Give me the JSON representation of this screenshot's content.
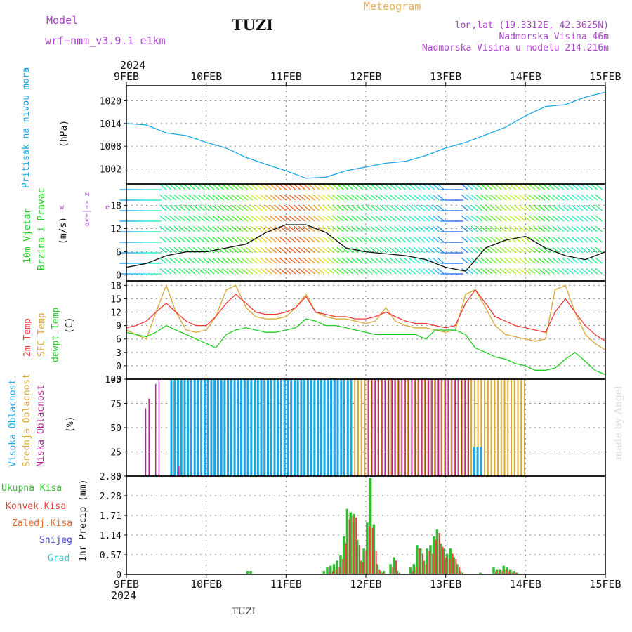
{
  "header": {
    "model_label": "Model",
    "model_name": "wrf−nmm_v3.9.1  e1km",
    "station": "TUZI",
    "product": "Meteogram",
    "lonlat": "lon,lat (19.3312E, 42.3625N)",
    "altitude": "Nadmorska Visina 46m",
    "model_altitude": "Nadmorska Visina u modelu 214.216m",
    "year": "2024",
    "footer_station": "TUZI",
    "watermark": "made by Angel"
  },
  "colors": {
    "pressure": "#1aa7e6",
    "temp2m": "#ee3b3b",
    "sfc": "#d9a835",
    "dew": "#22cc22",
    "high_cloud": "#1aa7e6",
    "mid_cloud": "#d9a835",
    "low_cloud": "#bb2299",
    "rain_total": "#33bb33",
    "rain_conv": "#ee3b3b",
    "snow": "#4444dd",
    "title_purple": "#aa44cc",
    "title_orange": "#e8b050"
  },
  "time_axis": {
    "ticks": [
      "9FEB",
      "10FEB",
      "11FEB",
      "12FEB",
      "13FEB",
      "14FEB",
      "15FEB"
    ]
  },
  "panels": {
    "pressure": {
      "labels": [
        "Pritisak na nivou mora"
      ],
      "unit": "(hPa)"
    },
    "wind": {
      "labels": [
        "10m Vjetar",
        "Brzina i Pravac"
      ],
      "unit": "(m/s)",
      "compass_ns": "α<−│−> z",
      "compass_w": "w",
      "compass_e": "e"
    },
    "temp": {
      "labels": [
        "2m Temp",
        "SFC Temp",
        "dewpt Temp"
      ],
      "unit": "(C)"
    },
    "cloud": {
      "labels": [
        "Visoka Oblacnost",
        "Srednja Oblacnost",
        "Niska Oblacnost"
      ],
      "unit": "(%)"
    },
    "precip": {
      "labels": [
        "Ukupna Kisa",
        "Konvek.Kisa",
        "Zaledj.Kisa",
        "Snijeg",
        "Grad"
      ],
      "unit": "1hr Precip (mm)"
    }
  },
  "chart_data": [
    {
      "type": "line",
      "title": "Pritisak na nivou mora",
      "ylabel": "(hPa)",
      "ylim": [
        998,
        1024
      ],
      "yticks": [
        1002,
        1008,
        1014,
        1020
      ],
      "x_days": [
        0,
        0.25,
        0.5,
        0.75,
        1.0,
        1.25,
        1.5,
        1.75,
        2.0,
        2.25,
        2.5,
        2.75,
        3.0,
        3.25,
        3.5,
        3.75,
        4.0,
        4.25,
        4.5,
        4.75,
        5.0,
        5.25,
        5.5,
        5.75,
        6.0
      ],
      "series": [
        {
          "values": [
            1014,
            1013.6,
            1011.5,
            1010.8,
            1009,
            1007.5,
            1005,
            1003.2,
            1001.5,
            999.5,
            999.8,
            1001.5,
            1002.5,
            1003.5,
            1004,
            1005.5,
            1007.5,
            1009,
            1011,
            1013,
            1016,
            1018.5,
            1019,
            1021,
            1022.3
          ]
        }
      ]
    },
    {
      "type": "line",
      "title": "10m Vjetar Brzina i Pravac",
      "ylabel": "(m/s)",
      "ylim": [
        -1.5,
        23.5
      ],
      "yticks": [
        0,
        6,
        12,
        18
      ],
      "x_days": [
        0,
        0.25,
        0.5,
        0.75,
        1.0,
        1.25,
        1.5,
        1.75,
        2.0,
        2.25,
        2.5,
        2.75,
        3.0,
        3.25,
        3.5,
        3.75,
        4.0,
        4.25,
        4.5,
        4.75,
        5.0,
        5.25,
        5.5,
        5.75,
        6.0
      ],
      "series": [
        {
          "values": [
            2,
            3,
            5,
            6,
            6,
            7,
            8,
            11,
            13,
            13,
            11,
            7,
            6,
            5.5,
            5,
            4,
            2,
            1,
            7,
            9,
            10,
            7,
            5,
            4,
            6
          ]
        }
      ]
    },
    {
      "type": "line",
      "title": "2m Temp / SFC Temp / dewpt Temp",
      "ylabel": "(C)",
      "ylim": [
        -3,
        19
      ],
      "yticks": [
        -3,
        0,
        3,
        6,
        9,
        12,
        15,
        18
      ],
      "x_days": [
        0,
        0.12,
        0.25,
        0.37,
        0.5,
        0.62,
        0.75,
        0.87,
        1.0,
        1.12,
        1.25,
        1.37,
        1.5,
        1.62,
        1.75,
        1.87,
        2.0,
        2.12,
        2.25,
        2.37,
        2.5,
        2.62,
        2.75,
        2.87,
        3.0,
        3.12,
        3.25,
        3.37,
        3.5,
        3.62,
        3.75,
        3.87,
        4.0,
        4.12,
        4.25,
        4.37,
        4.5,
        4.62,
        4.75,
        4.87,
        5.0,
        5.12,
        5.25,
        5.37,
        5.5,
        5.62,
        5.75,
        5.87,
        6.0
      ],
      "series": [
        {
          "name": "2m Temp",
          "values": [
            8.5,
            9,
            10,
            12,
            14,
            12,
            10,
            9,
            9,
            11,
            14,
            16,
            14,
            12,
            11.5,
            11.5,
            12,
            13,
            15.5,
            12,
            11.5,
            11,
            11,
            10.5,
            10.5,
            11,
            12,
            11,
            10,
            9.5,
            9.5,
            9,
            8.5,
            9,
            14,
            17,
            14,
            11,
            10,
            9,
            8.5,
            8,
            7.5,
            12,
            15,
            12,
            9,
            7,
            5.5
          ]
        },
        {
          "name": "SFC Temp",
          "values": [
            8,
            7,
            6,
            12,
            18,
            12,
            8,
            7.5,
            8,
            11,
            17,
            18,
            13,
            11,
            10.5,
            10.5,
            11,
            13,
            16,
            12,
            11,
            10.5,
            10.5,
            10,
            9.5,
            10,
            13,
            10,
            9,
            8.5,
            8.5,
            8,
            7.5,
            8,
            16,
            17,
            13,
            9,
            7,
            6.5,
            6,
            5.5,
            6,
            17,
            18,
            12,
            7,
            5,
            3.5
          ]
        },
        {
          "name": "dewpt Temp",
          "values": [
            7.5,
            7,
            6.5,
            7.5,
            9,
            8,
            7,
            6,
            5,
            4,
            7,
            8,
            8.5,
            8,
            7.5,
            7.5,
            8,
            8.5,
            10.5,
            10,
            9,
            9,
            8.5,
            8,
            7.5,
            7,
            7,
            7,
            7,
            7,
            6,
            8,
            8,
            8,
            7,
            4,
            3,
            2,
            1.5,
            0.5,
            0,
            -1,
            -1,
            -0.5,
            1.5,
            3,
            1,
            -1,
            -2
          ]
        }
      ]
    },
    {
      "type": "bar",
      "title": "Visoka / Srednja / Niska Oblacnost",
      "ylabel": "(%)",
      "ylim": [
        0,
        100
      ],
      "yticks": [
        0,
        25,
        50,
        75,
        100
      ],
      "step_days": 0.0417,
      "series": [
        {
          "name": "Visoka Oblacnost",
          "start_day": 0.55,
          "values": [
            100,
            100,
            100,
            100,
            100,
            100,
            100,
            100,
            100,
            100,
            100,
            100,
            100,
            100,
            100,
            100,
            100,
            100,
            100,
            100,
            100,
            100,
            100,
            100,
            100,
            100,
            100,
            100,
            100,
            100,
            100,
            100,
            100,
            100,
            100,
            100,
            100,
            100,
            100,
            100,
            100,
            100,
            100,
            100,
            100,
            100,
            100,
            100,
            100,
            100,
            100,
            100,
            100,
            100,
            100,
            0,
            0,
            0,
            0,
            0,
            0,
            0,
            0,
            0,
            0,
            0,
            0,
            0,
            0,
            0,
            0,
            0,
            0,
            0,
            0,
            0,
            0,
            0,
            0,
            0,
            0,
            0,
            0,
            0,
            0,
            0,
            0,
            0,
            0,
            0,
            0,
            30,
            30,
            30,
            0,
            0,
            0,
            0
          ]
        },
        {
          "name": "Srednja Oblacnost",
          "start_day": 1.0,
          "values": [
            100,
            100,
            100,
            100,
            100,
            100,
            80,
            80,
            80,
            90,
            90,
            100,
            100,
            100,
            100,
            100,
            100,
            100,
            100,
            100,
            100,
            95,
            95,
            100,
            100,
            100,
            100,
            100,
            100,
            100,
            100,
            100,
            100,
            100,
            100,
            100,
            100,
            100,
            100,
            100,
            100,
            100,
            100,
            100,
            100,
            100,
            100,
            100,
            100,
            100,
            100,
            100,
            100,
            100,
            100,
            100,
            100,
            100,
            100,
            100,
            100,
            100,
            100,
            100,
            100,
            100,
            100,
            100,
            100,
            100,
            100,
            100,
            100,
            100,
            100,
            100,
            100,
            100,
            100,
            100,
            100,
            100,
            100,
            100,
            100,
            100,
            100,
            100,
            100,
            100,
            100,
            100,
            100,
            100,
            100,
            100
          ]
        },
        {
          "name": "Niska Oblacnost",
          "start_day": 0.2,
          "values": [
            70,
            80,
            0,
            95,
            100,
            0,
            0,
            0,
            0,
            0,
            10,
            0,
            0,
            0,
            0,
            0,
            0,
            0,
            0,
            0,
            0,
            0,
            0,
            0,
            0,
            0,
            0,
            0,
            0,
            0,
            0,
            0,
            0,
            0,
            0,
            0,
            0,
            0,
            0,
            0,
            0,
            0,
            0,
            0,
            0,
            0,
            0,
            0,
            0,
            0,
            0,
            0,
            0,
            0,
            0,
            0,
            0,
            0,
            0,
            0,
            0,
            0,
            0,
            0,
            0,
            0,
            0,
            100,
            100,
            100,
            100,
            100,
            100,
            100,
            100,
            100,
            100,
            100,
            100,
            100,
            100,
            100,
            100,
            100,
            100,
            100,
            100,
            100,
            100,
            100,
            100,
            100,
            100,
            100,
            100,
            100,
            100,
            100
          ]
        }
      ]
    },
    {
      "type": "bar",
      "title": "1hr Precip",
      "ylabel": "1hr Precip (mm)",
      "ylim": [
        0,
        2.85
      ],
      "yticks": [
        0,
        0.57,
        1.14,
        1.71,
        2.28,
        2.85
      ],
      "step_days": 0.0417,
      "series": [
        {
          "name": "Ukupna Kisa",
          "start_day": 1.5,
          "values": [
            0.1,
            0.1,
            0,
            0,
            0,
            0,
            0,
            0,
            0,
            0,
            0,
            0,
            0,
            0,
            0,
            0,
            0,
            0,
            0,
            0,
            0,
            0,
            0,
            0.1,
            0.2,
            0.25,
            0.3,
            0.4,
            0.55,
            1.1,
            1.9,
            1.8,
            1.75,
            1.0,
            0.4,
            0.75,
            1.5,
            2.8,
            1.45,
            0.3,
            0.1,
            0.1,
            0,
            0.3,
            0.5,
            0.1,
            0,
            0,
            0,
            0.2,
            0.3,
            0.85,
            0.75,
            0.4,
            0.75,
            0.85,
            1.1,
            1.3,
            0.9,
            0.75,
            0.6,
            0.75,
            0.5,
            0.3,
            0.1,
            0,
            0,
            0,
            0,
            0,
            0.05,
            0,
            0,
            0,
            0.2,
            0.15,
            0.15,
            0.25,
            0.2,
            0.15,
            0.1,
            0.05
          ]
        },
        {
          "name": "Konvek.Kisa",
          "start_day": 1.5,
          "values": [
            0,
            0,
            0,
            0,
            0,
            0,
            0,
            0,
            0,
            0,
            0,
            0,
            0,
            0,
            0,
            0,
            0,
            0,
            0,
            0,
            0,
            0,
            0,
            0,
            0.05,
            0.1,
            0.15,
            0.2,
            0.45,
            0.9,
            1.6,
            1.7,
            1.65,
            0.85,
            0.35,
            0.7,
            1.4,
            1.35,
            0.7,
            0.15,
            0.05,
            0,
            0,
            0.2,
            0.4,
            0.05,
            0,
            0,
            0,
            0.1,
            0.2,
            0.75,
            0.6,
            0.3,
            0.7,
            0.6,
            1.0,
            1.2,
            0.8,
            0.5,
            0.45,
            0.6,
            0.45,
            0.2,
            0.05,
            0,
            0,
            0,
            0,
            0,
            0,
            0,
            0,
            0,
            0.1,
            0.1,
            0.1,
            0.15,
            0.1,
            0.05,
            0.05,
            0
          ]
        }
      ]
    }
  ]
}
